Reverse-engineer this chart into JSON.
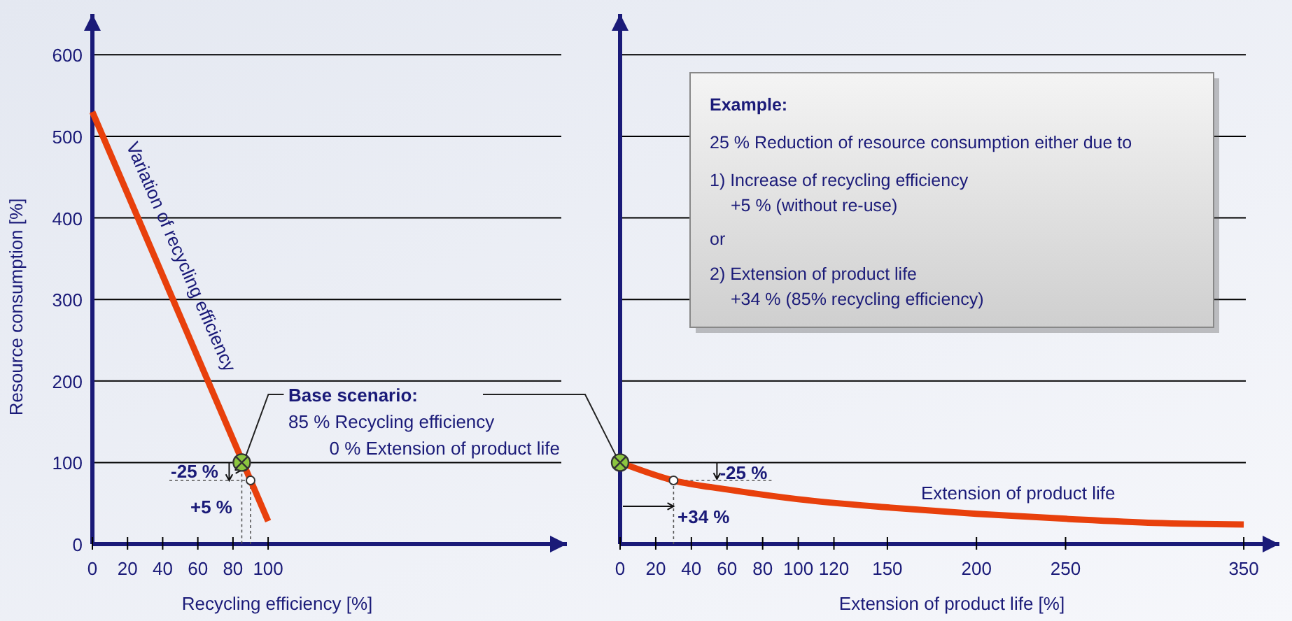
{
  "chart_data": [
    {
      "type": "line",
      "xlabel": "Recycling efficiency [%]",
      "ylabel": "Resource consumption [%]",
      "xlim": [
        0,
        270
      ],
      "ylim": [
        0,
        650
      ],
      "xticks": [
        0,
        20,
        40,
        60,
        80,
        100
      ],
      "yticks": [
        0,
        100,
        200,
        300,
        400,
        500,
        600
      ],
      "grid": "y",
      "line_style": "solid",
      "annotations": [
        "Variation of recycling efficiency",
        {
          "text": "Base scenario:",
          "x": 85,
          "y": 100
        },
        "85 % Recycling efficiency",
        "0 % Extension of product life",
        {
          "text": "-25 %",
          "x": 90,
          "y": 78
        },
        "+5 %"
      ],
      "series": [
        {
          "color": "#e8400c",
          "x": [
            0,
            100
          ],
          "values": [
            530,
            28
          ]
        },
        {
          "type": "scatter",
          "marker": "circle",
          "color": "#8cc63f",
          "x": [
            85
          ],
          "values": [
            100
          ]
        },
        {
          "type": "scatter",
          "marker": "circle",
          "color": "#ffffff",
          "x": [
            90
          ],
          "values": [
            78
          ]
        }
      ]
    },
    {
      "type": "line",
      "xlabel": "Extension of product life [%]",
      "xlim": [
        0,
        370
      ],
      "ylim": [
        0,
        650
      ],
      "xticks": [
        0,
        20,
        40,
        60,
        80,
        100,
        120,
        150,
        200,
        250,
        350
      ],
      "yticks": [
        0,
        100,
        200,
        300,
        400,
        500,
        600
      ],
      "grid": "y",
      "tick_labels": "x",
      "line_style": "solid",
      "annotations": [
        "Example:",
        "25 % Reduction of resource consumption either due to",
        "1) Increase of recycling efficiency",
        "+5 % (without re-use)",
        "or",
        "2) Extension of product life",
        "+34 % (85% recycling efficiency)",
        {
          "text": "-25 %",
          "x": 30,
          "y": 78
        },
        "+34 %",
        "Extension of product life"
      ],
      "series": [
        {
          "color": "#e8400c",
          "x": [
            0,
            30,
            60,
            100,
            150,
            200,
            250,
            300,
            350
          ],
          "values": [
            100,
            78,
            67,
            55,
            45,
            37,
            31,
            26,
            24
          ]
        },
        {
          "type": "scatter",
          "marker": "circle",
          "color": "#8cc63f",
          "x": [
            0
          ],
          "values": [
            100
          ]
        },
        {
          "type": "scatter",
          "marker": "circle",
          "color": "#ffffff",
          "x": [
            30
          ],
          "values": [
            78
          ]
        }
      ]
    }
  ]
}
